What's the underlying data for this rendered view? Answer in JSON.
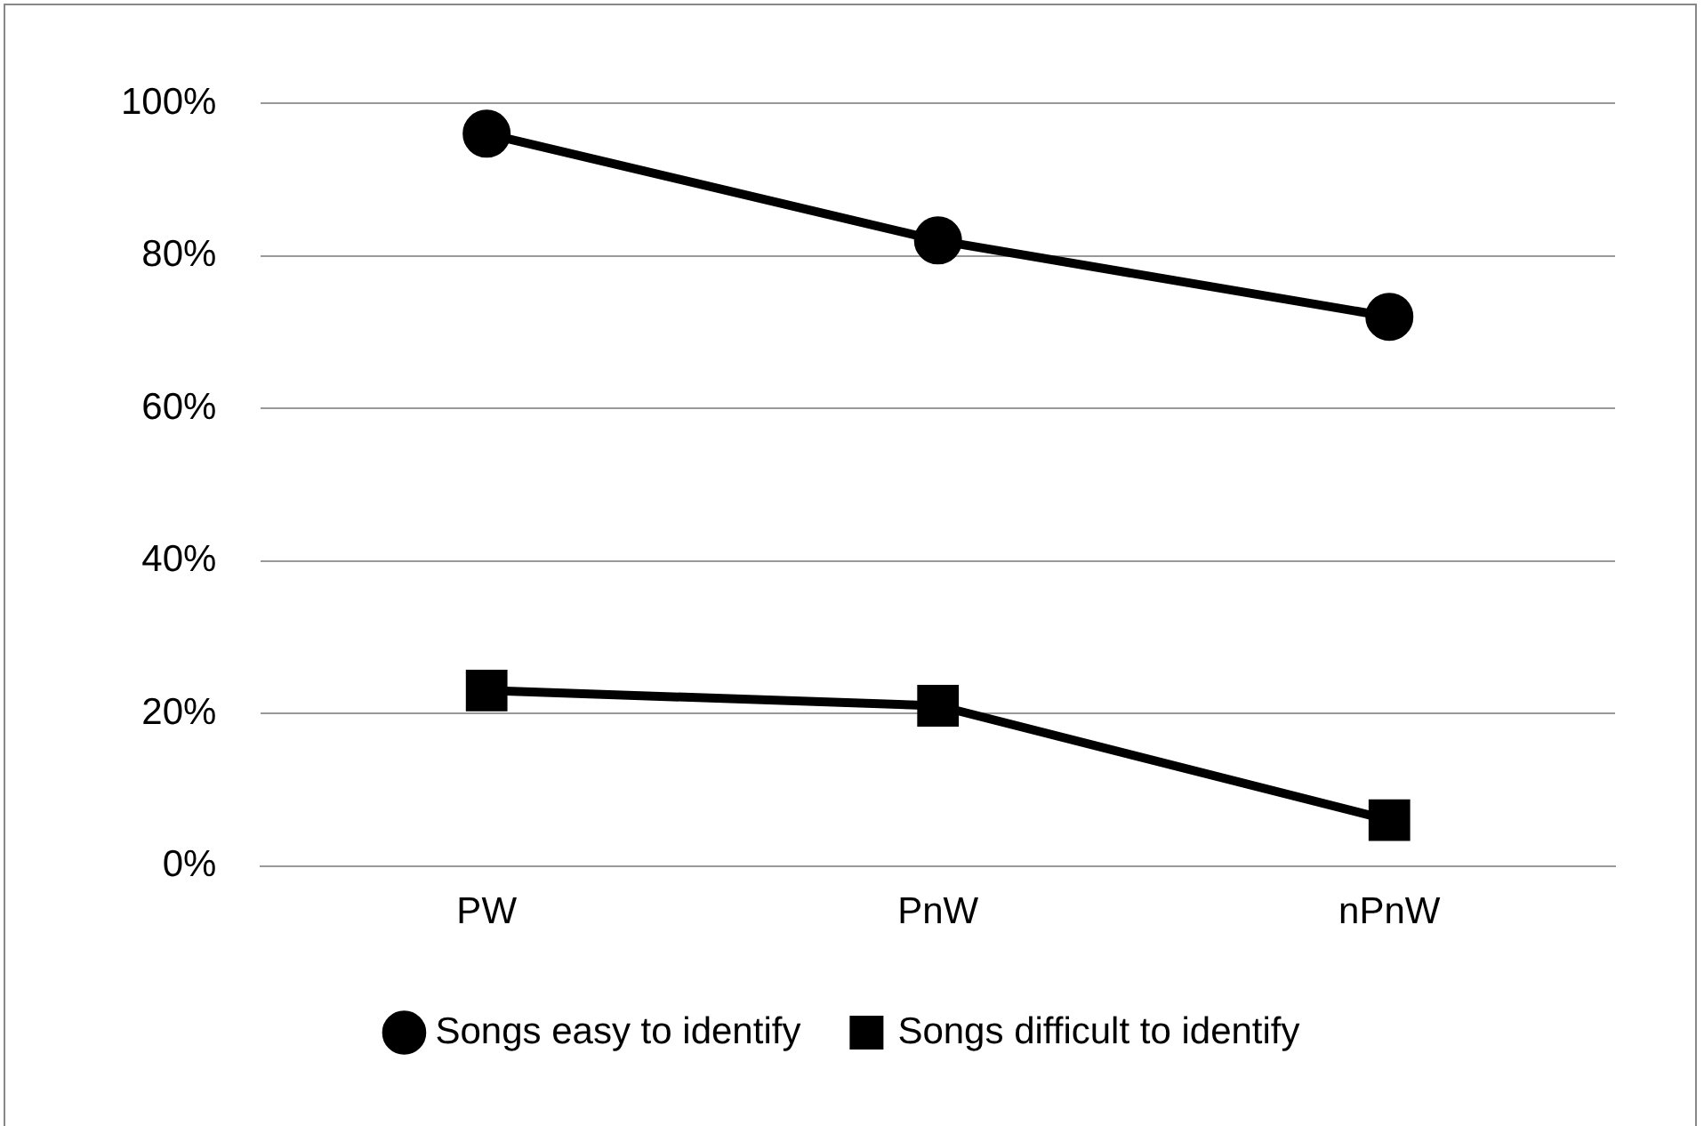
{
  "chart_data": {
    "type": "line",
    "categories": [
      "PW",
      "PnW",
      "nPnW"
    ],
    "series": [
      {
        "name": "Songs easy to identify",
        "color": "#000000",
        "marker": "circle",
        "values": [
          96,
          82,
          72
        ]
      },
      {
        "name": "Songs difficult to identify",
        "color": "#000000",
        "marker": "square",
        "values": [
          23,
          21,
          6
        ]
      }
    ],
    "ylim": [
      0,
      100
    ],
    "yticks": [
      {
        "value": 0,
        "label": "0%"
      },
      {
        "value": 20,
        "label": "20%"
      },
      {
        "value": 40,
        "label": "40%"
      },
      {
        "value": 60,
        "label": "60%"
      },
      {
        "value": 80,
        "label": "80%"
      },
      {
        "value": 100,
        "label": "100%"
      }
    ],
    "grid": "y",
    "legend": "bottom"
  }
}
